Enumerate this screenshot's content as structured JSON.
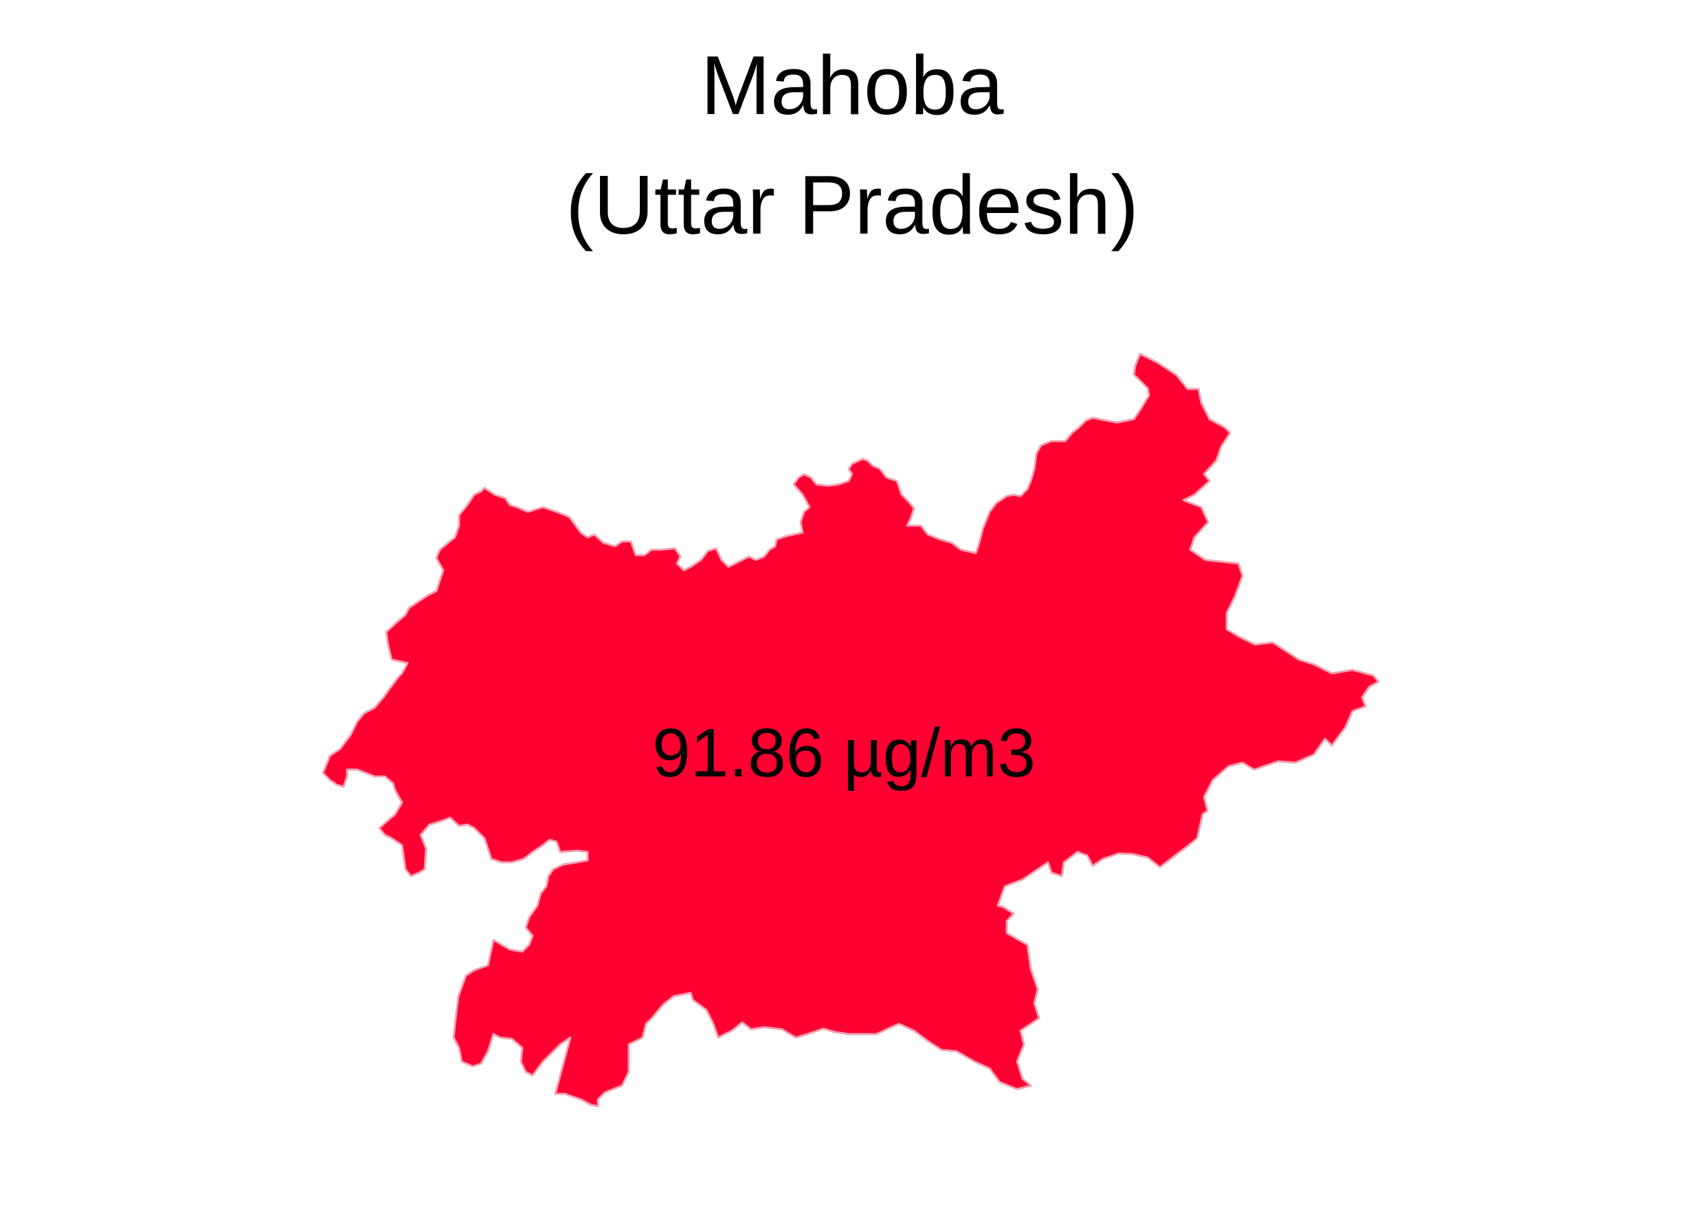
{
  "map": {
    "title": "Mahoba",
    "subtitle": "(Uttar Pradesh)",
    "value_label": "91.86 µg/m3",
    "fill_color": "#ff0033",
    "outline_color": "#f2a0b0"
  }
}
